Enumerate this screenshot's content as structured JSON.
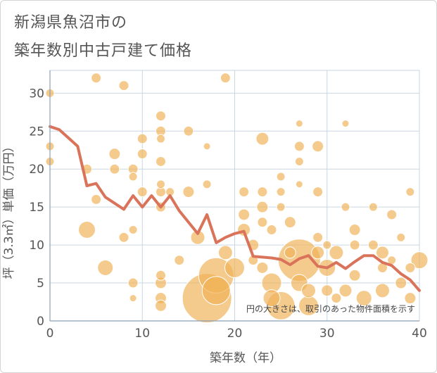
{
  "chart_data": {
    "type": "scatter",
    "title_line1": "新潟県魚沼市の",
    "title_line2": "築年数別中古戸建て価格",
    "xlabel": "築年数（年）",
    "ylabel": "坪（3.3㎡）単価（万円）",
    "note": "円の大きさは、取引のあった物件面積を示す",
    "xlim": [
      0,
      40
    ],
    "ylim": [
      0,
      33
    ],
    "xticks": [
      0,
      10,
      20,
      30,
      40
    ],
    "yticks": [
      0,
      5,
      10,
      15,
      20,
      25,
      30
    ],
    "colors": {
      "bubble": "#f0b257",
      "bubble_edge": "#e6a346",
      "line": "#d9735a",
      "grid": "#c9d6e3",
      "axis": "#8aa0b6"
    },
    "trend": {
      "x": [
        0,
        1,
        2,
        3,
        4,
        5,
        6,
        7,
        8,
        9,
        10,
        11,
        12,
        13,
        14,
        15,
        16,
        17,
        18,
        19,
        20,
        21,
        22,
        23,
        24,
        25,
        26,
        27,
        28,
        29,
        30,
        31,
        32,
        33,
        34,
        35,
        36,
        37,
        38,
        39,
        40
      ],
      "y": [
        25.6,
        25.2,
        24.1,
        23.0,
        17.8,
        18.1,
        16.3,
        15.5,
        14.7,
        16.5,
        15.0,
        16.5,
        15.0,
        16.5,
        14.5,
        13.0,
        11.5,
        14.0,
        10.3,
        11.0,
        11.5,
        11.8,
        8.5,
        8.4,
        8.3,
        8.1,
        7.4,
        8.2,
        8.6,
        7.2,
        7.0,
        7.7,
        6.9,
        7.8,
        8.6,
        8.6,
        7.7,
        7.3,
        6.2,
        5.4,
        4.0
      ]
    },
    "points": [
      {
        "x": 0,
        "y": 30,
        "r": 6
      },
      {
        "x": 0,
        "y": 23,
        "r": 6
      },
      {
        "x": 0,
        "y": 21,
        "r": 6
      },
      {
        "x": 5,
        "y": 32,
        "r": 7
      },
      {
        "x": 8,
        "y": 31,
        "r": 7
      },
      {
        "x": 19,
        "y": 32,
        "r": 7
      },
      {
        "x": 12,
        "y": 27,
        "r": 7
      },
      {
        "x": 12,
        "y": 25,
        "r": 7
      },
      {
        "x": 12,
        "y": 24,
        "r": 6
      },
      {
        "x": 10,
        "y": 24,
        "r": 7
      },
      {
        "x": 7,
        "y": 22,
        "r": 8
      },
      {
        "x": 10,
        "y": 22,
        "r": 7
      },
      {
        "x": 12,
        "y": 21,
        "r": 7
      },
      {
        "x": 4,
        "y": 20,
        "r": 7
      },
      {
        "x": 7,
        "y": 20,
        "r": 7
      },
      {
        "x": 9,
        "y": 20,
        "r": 7
      },
      {
        "x": 9,
        "y": 19,
        "r": 6
      },
      {
        "x": 12,
        "y": 18,
        "r": 6
      },
      {
        "x": 12,
        "y": 17,
        "r": 7
      },
      {
        "x": 15,
        "y": 17,
        "r": 8
      },
      {
        "x": 10,
        "y": 17,
        "r": 7
      },
      {
        "x": 5,
        "y": 16,
        "r": 7
      },
      {
        "x": 15,
        "y": 25,
        "r": 7
      },
      {
        "x": 17,
        "y": 23,
        "r": 5
      },
      {
        "x": 17,
        "y": 18,
        "r": 6
      },
      {
        "x": 21,
        "y": 17,
        "r": 7
      },
      {
        "x": 23,
        "y": 17,
        "r": 7
      },
      {
        "x": 23,
        "y": 15,
        "r": 8
      },
      {
        "x": 25,
        "y": 15,
        "r": 6
      },
      {
        "x": 23,
        "y": 24,
        "r": 9
      },
      {
        "x": 25,
        "y": 19,
        "r": 6
      },
      {
        "x": 27,
        "y": 26,
        "r": 5
      },
      {
        "x": 27,
        "y": 23,
        "r": 7
      },
      {
        "x": 27,
        "y": 21,
        "r": 6
      },
      {
        "x": 29,
        "y": 23,
        "r": 8
      },
      {
        "x": 32,
        "y": 26,
        "r": 5
      },
      {
        "x": 25,
        "y": 17,
        "r": 6
      },
      {
        "x": 27,
        "y": 18,
        "r": 5
      },
      {
        "x": 29,
        "y": 17,
        "r": 7
      },
      {
        "x": 32,
        "y": 15,
        "r": 6
      },
      {
        "x": 4,
        "y": 12,
        "r": 12
      },
      {
        "x": 9,
        "y": 12,
        "r": 6
      },
      {
        "x": 8,
        "y": 11,
        "r": 7
      },
      {
        "x": 6,
        "y": 7,
        "r": 11
      },
      {
        "x": 9,
        "y": 5,
        "r": 7
      },
      {
        "x": 9,
        "y": 3,
        "r": 5
      },
      {
        "x": 12,
        "y": 15,
        "r": 7
      },
      {
        "x": 13,
        "y": 17,
        "r": 6
      },
      {
        "x": 12,
        "y": 6,
        "r": 7
      },
      {
        "x": 12,
        "y": 5,
        "r": 8
      },
      {
        "x": 12,
        "y": 3,
        "r": 8
      },
      {
        "x": 12,
        "y": 2,
        "r": 8
      },
      {
        "x": 14,
        "y": 8,
        "r": 7
      },
      {
        "x": 16,
        "y": 11,
        "r": 10
      },
      {
        "x": 17,
        "y": 3,
        "r": 35
      },
      {
        "x": 18,
        "y": 6,
        "r": 25
      },
      {
        "x": 18,
        "y": 4,
        "r": 20
      },
      {
        "x": 19,
        "y": 9,
        "r": 10
      },
      {
        "x": 20,
        "y": 7,
        "r": 14
      },
      {
        "x": 21,
        "y": 14,
        "r": 8
      },
      {
        "x": 21,
        "y": 12,
        "r": 9
      },
      {
        "x": 22,
        "y": 10,
        "r": 8
      },
      {
        "x": 22,
        "y": 8,
        "r": 7
      },
      {
        "x": 23,
        "y": 13,
        "r": 7
      },
      {
        "x": 24,
        "y": 12,
        "r": 7
      },
      {
        "x": 23,
        "y": 7,
        "r": 8
      },
      {
        "x": 24,
        "y": 5,
        "r": 14
      },
      {
        "x": 24,
        "y": 3,
        "r": 12
      },
      {
        "x": 25,
        "y": 2,
        "r": 20
      },
      {
        "x": 26,
        "y": 13,
        "r": 8
      },
      {
        "x": 26,
        "y": 9,
        "r": 8
      },
      {
        "x": 27,
        "y": 8,
        "r": 30
      },
      {
        "x": 27,
        "y": 5,
        "r": 12
      },
      {
        "x": 28,
        "y": 4,
        "r": 10
      },
      {
        "x": 28,
        "y": 2,
        "r": 14
      },
      {
        "x": 29,
        "y": 11,
        "r": 7
      },
      {
        "x": 29,
        "y": 9,
        "r": 9
      },
      {
        "x": 30,
        "y": 10,
        "r": 6
      },
      {
        "x": 30,
        "y": 7,
        "r": 12
      },
      {
        "x": 31,
        "y": 9,
        "r": 10
      },
      {
        "x": 30,
        "y": 4,
        "r": 8
      },
      {
        "x": 31,
        "y": 3,
        "r": 7
      },
      {
        "x": 32,
        "y": 4,
        "r": 9
      },
      {
        "x": 33,
        "y": 12,
        "r": 8
      },
      {
        "x": 33,
        "y": 10,
        "r": 7
      },
      {
        "x": 33,
        "y": 6,
        "r": 8
      },
      {
        "x": 34,
        "y": 3,
        "r": 11
      },
      {
        "x": 35,
        "y": 15,
        "r": 6
      },
      {
        "x": 35,
        "y": 10,
        "r": 7
      },
      {
        "x": 36,
        "y": 9,
        "r": 9
      },
      {
        "x": 36,
        "y": 7,
        "r": 7
      },
      {
        "x": 36,
        "y": 4,
        "r": 10
      },
      {
        "x": 37,
        "y": 14,
        "r": 7
      },
      {
        "x": 37,
        "y": 8,
        "r": 6
      },
      {
        "x": 38,
        "y": 11,
        "r": 6
      },
      {
        "x": 38,
        "y": 5,
        "r": 8
      },
      {
        "x": 39,
        "y": 17,
        "r": 6
      },
      {
        "x": 39,
        "y": 7,
        "r": 7
      },
      {
        "x": 40,
        "y": 8,
        "r": 12
      },
      {
        "x": 39,
        "y": 3,
        "r": 8
      }
    ]
  }
}
